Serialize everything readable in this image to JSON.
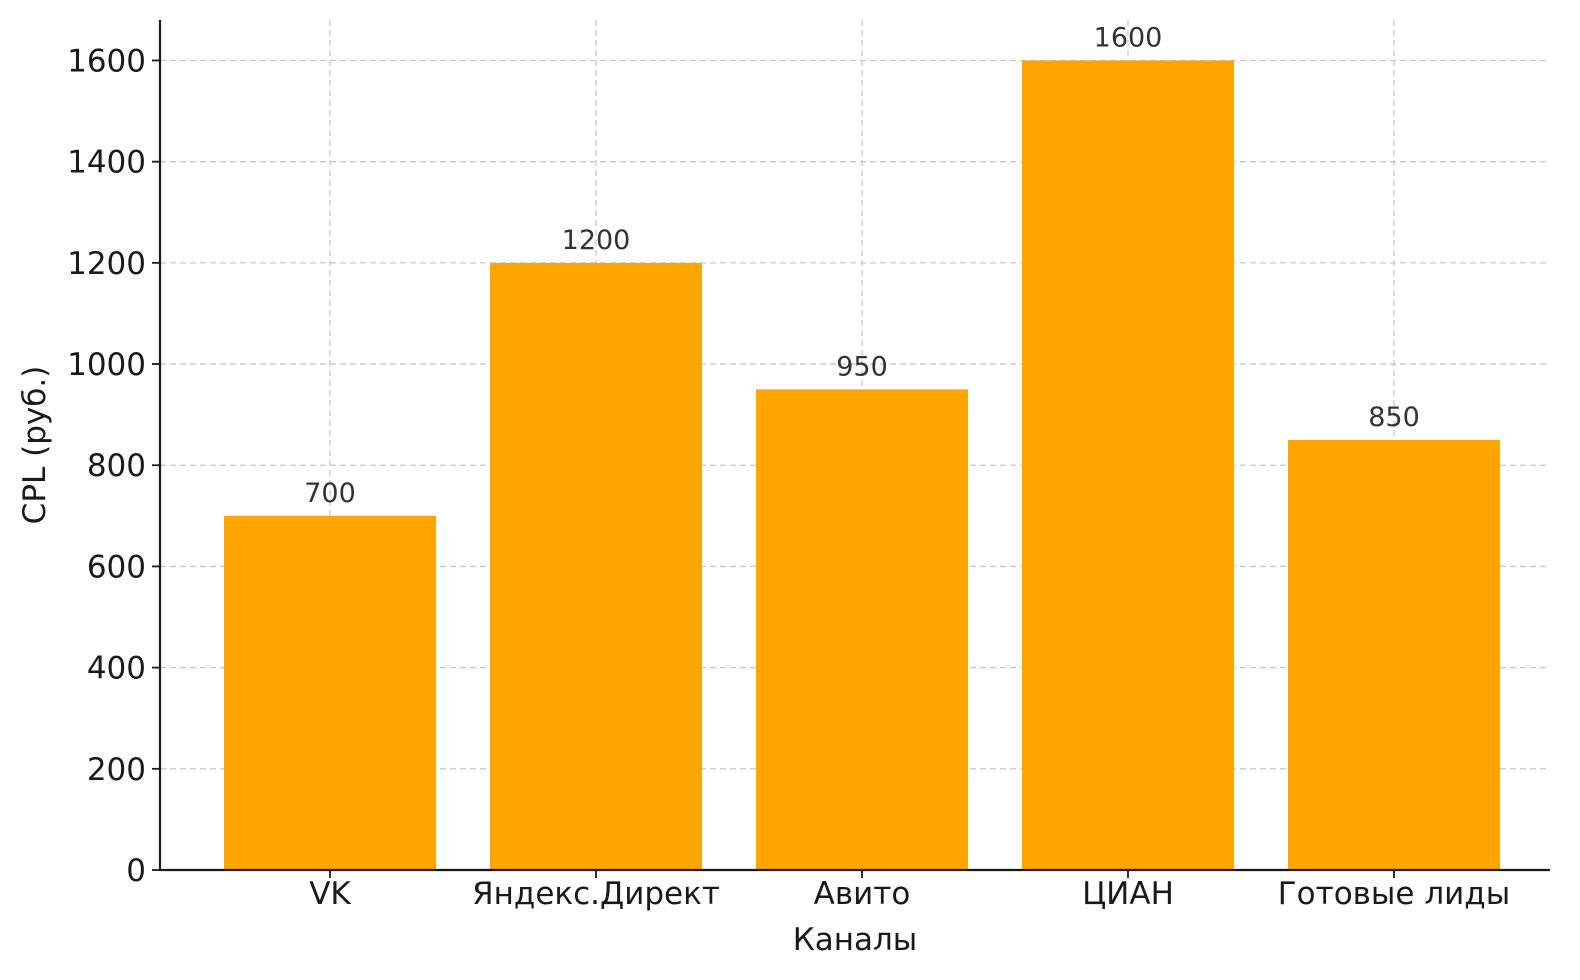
{
  "chart_data": {
    "type": "bar",
    "title": "",
    "xlabel": "Каналы",
    "ylabel": "CPL (руб.)",
    "categories": [
      "VK",
      "Яндекс.Директ",
      "Авито",
      "ЦИАН",
      "Готовые лиды"
    ],
    "values": [
      700,
      1200,
      950,
      1600,
      850
    ],
    "data_labels": [
      "700",
      "1200",
      "950",
      "1600",
      "850"
    ],
    "ylim": [
      0,
      1680
    ],
    "yticks": [
      0,
      200,
      400,
      600,
      800,
      1000,
      1200,
      1400,
      1600
    ],
    "grid": true,
    "bar_color": "#FFA500"
  }
}
